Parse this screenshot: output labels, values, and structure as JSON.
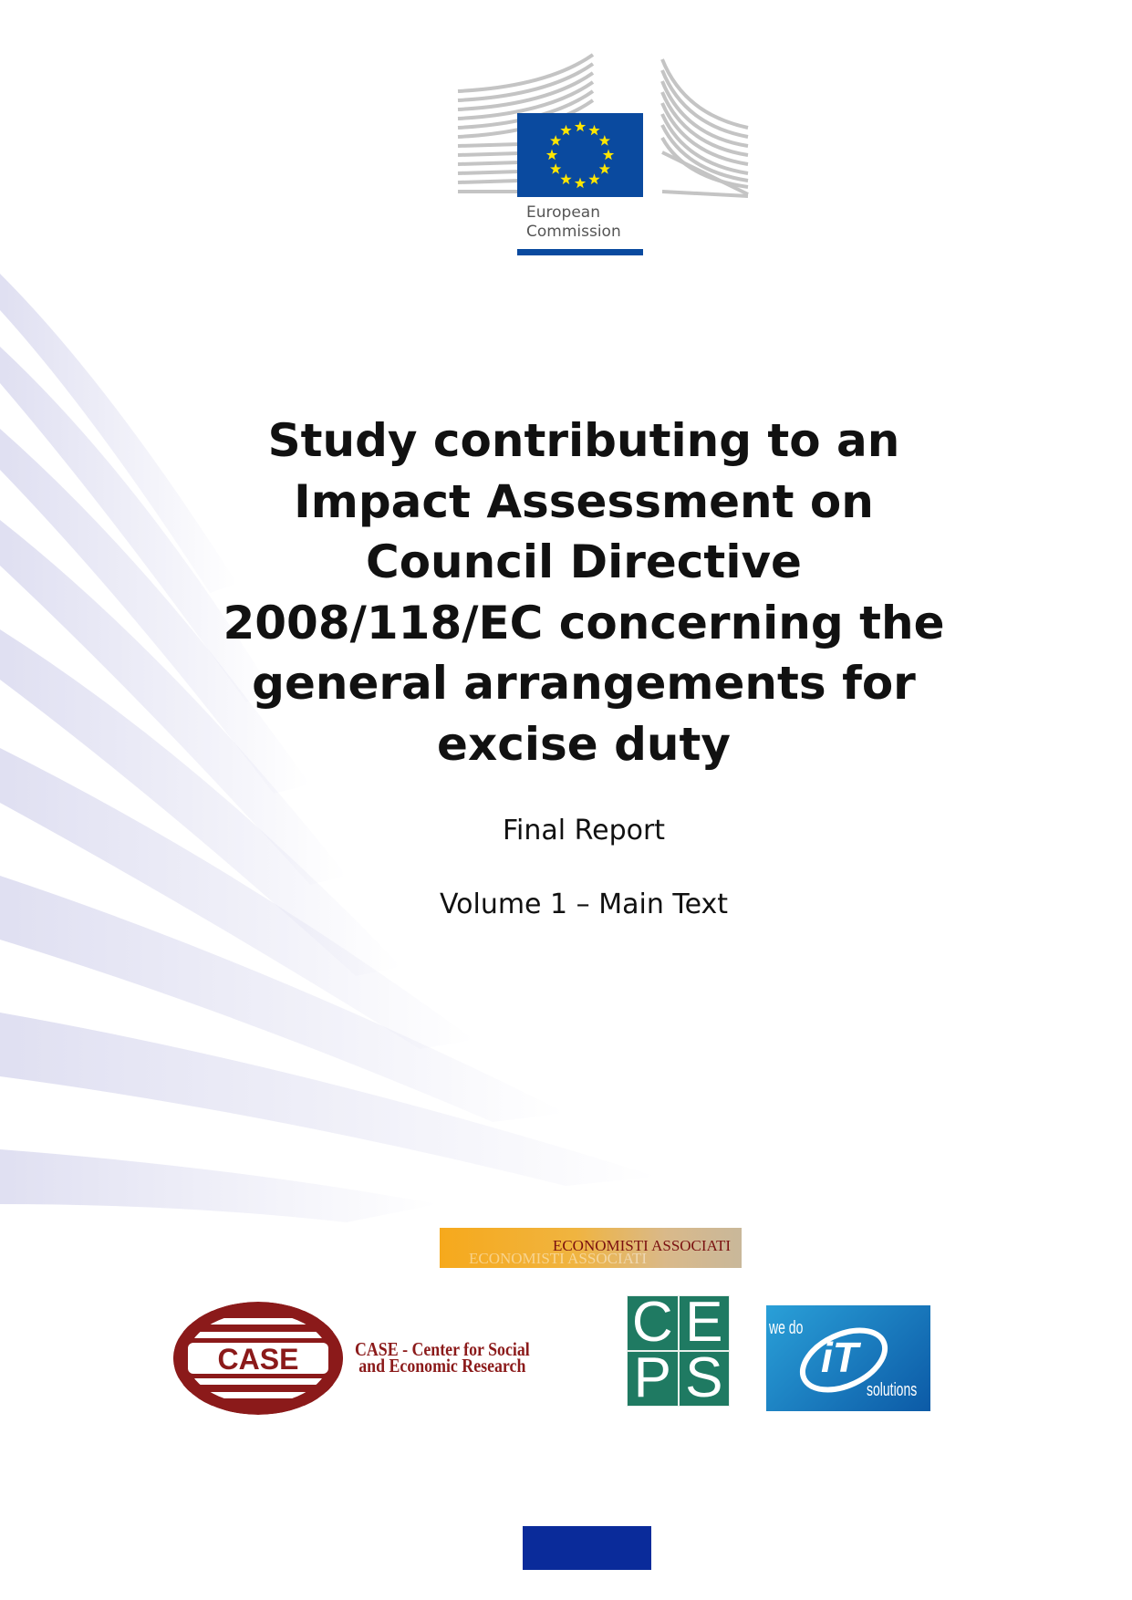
{
  "logo": {
    "text_line1": "European",
    "text_line2": "Commission",
    "flag_color": "#0a4a9f",
    "star_color": "#ffe600"
  },
  "title_lines": [
    "Study contributing to an",
    "Impact Assessment on",
    "Council Directive",
    "2008/118/EC concerning the",
    "general arrangements for",
    "excise duty"
  ],
  "subtitle": "Final Report",
  "volume": "Volume 1 – Main Text",
  "partners": {
    "economisti": "ECONOMISTI ASSOCIATI",
    "case_logo": "CASE",
    "case_line1": "CASE - Center for Social",
    "case_line2": "and Economic Research",
    "ceps_letters": [
      "C",
      "E",
      "P",
      "S"
    ],
    "it_we_do": "we do",
    "it_mark": "iT",
    "it_solutions": "solutions"
  },
  "colors": {
    "ec_blue": "#0a2b9a",
    "case_red": "#8b1a1a",
    "ceps_green": "#1f7a62",
    "it_blue": "#1a7cc4"
  }
}
